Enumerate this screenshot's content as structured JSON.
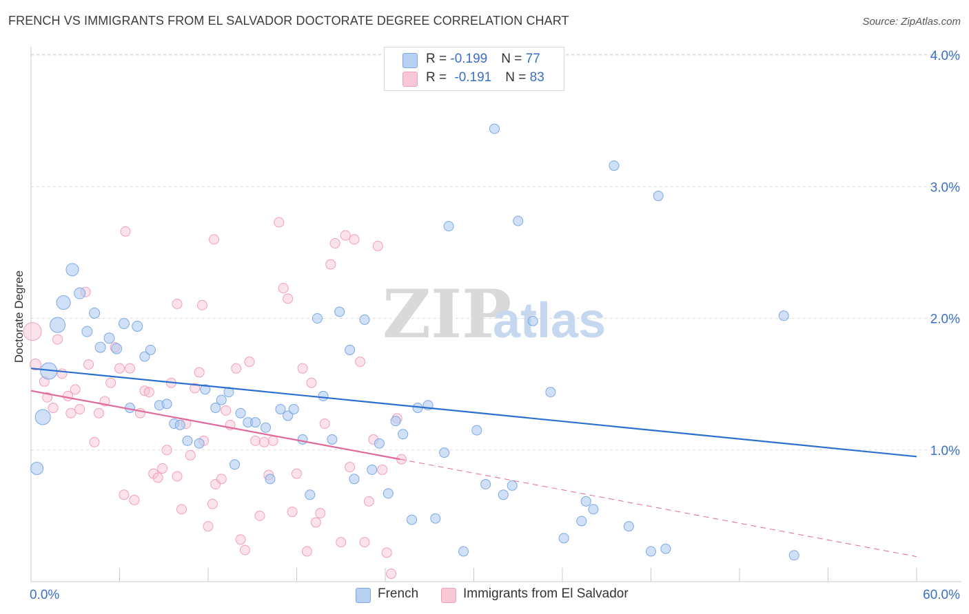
{
  "title": "FRENCH VS IMMIGRANTS FROM EL SALVADOR DOCTORATE DEGREE CORRELATION CHART",
  "source": "Source: ZipAtlas.com",
  "watermark": {
    "zip": "ZIP",
    "atlas": "atlas"
  },
  "legend": {
    "rows": [
      {
        "r_label": "R = ",
        "r_value": "-0.199",
        "n_label": "N = ",
        "n_value": "77"
      },
      {
        "r_label": "R = ",
        "r_value": "-0.191",
        "n_label": "N = ",
        "n_value": "83"
      }
    ]
  },
  "chart_data": {
    "type": "scatter",
    "title": "FRENCH VS IMMIGRANTS FROM EL SALVADOR DOCTORATE DEGREE CORRELATION CHART",
    "xlabel": "",
    "ylabel": "Doctorate Degree",
    "xlim": [
      0,
      60
    ],
    "ylim": [
      0,
      4.0
    ],
    "x_tick_labels": [
      "0.0%",
      "60.0%"
    ],
    "y_tick_labels": [
      "1.0%",
      "2.0%",
      "3.0%",
      "4.0%"
    ],
    "y_tick_values": [
      1.0,
      2.0,
      3.0,
      4.0
    ],
    "grid": true,
    "legend_position": "top-center",
    "colors": {
      "french": "#7aa8e6",
      "salvador": "#f0a0ba",
      "french_line": "#2a6fd0",
      "salvador_line": "#e0689a"
    },
    "series": [
      {
        "name": "French",
        "points": [
          [
            0.4,
            0.86,
            16
          ],
          [
            0.8,
            1.25,
            20
          ],
          [
            1.2,
            1.6,
            22
          ],
          [
            1.8,
            1.95,
            20
          ],
          [
            2.2,
            2.12,
            18
          ],
          [
            2.8,
            2.37,
            16
          ],
          [
            3.3,
            2.19,
            14
          ],
          [
            3.8,
            1.9,
            13
          ],
          [
            4.3,
            2.04,
            13
          ],
          [
            4.7,
            1.78,
            13
          ],
          [
            5.3,
            1.85,
            13
          ],
          [
            5.8,
            1.77,
            13
          ],
          [
            6.3,
            1.96,
            13
          ],
          [
            6.7,
            1.32,
            12
          ],
          [
            7.2,
            1.94,
            13
          ],
          [
            7.7,
            1.71,
            12
          ],
          [
            8.1,
            1.76,
            12
          ],
          [
            8.7,
            1.34,
            12
          ],
          [
            9.2,
            1.35,
            12
          ],
          [
            9.7,
            1.2,
            12
          ],
          [
            10.1,
            1.19,
            12
          ],
          [
            10.6,
            1.07,
            12
          ],
          [
            11.4,
            1.05,
            12
          ],
          [
            11.8,
            1.46,
            12
          ],
          [
            12.5,
            1.32,
            12
          ],
          [
            12.9,
            1.38,
            12
          ],
          [
            13.4,
            1.44,
            12
          ],
          [
            13.8,
            0.89,
            12
          ],
          [
            14.2,
            1.28,
            12
          ],
          [
            14.7,
            1.21,
            12
          ],
          [
            15.2,
            1.21,
            12
          ],
          [
            15.9,
            1.17,
            12
          ],
          [
            16.2,
            0.78,
            12
          ],
          [
            16.9,
            1.31,
            12
          ],
          [
            17.4,
            1.26,
            12
          ],
          [
            17.8,
            1.31,
            12
          ],
          [
            18.4,
            1.08,
            12
          ],
          [
            18.9,
            0.66,
            12
          ],
          [
            19.4,
            2.0,
            12
          ],
          [
            19.8,
            1.41,
            12
          ],
          [
            20.4,
            1.08,
            12
          ],
          [
            20.9,
            2.05,
            12
          ],
          [
            21.6,
            1.76,
            12
          ],
          [
            21.9,
            0.78,
            12
          ],
          [
            22.6,
            1.99,
            12
          ],
          [
            23.1,
            0.85,
            12
          ],
          [
            23.6,
            1.05,
            12
          ],
          [
            24.2,
            0.67,
            12
          ],
          [
            24.7,
            1.22,
            12
          ],
          [
            25.2,
            1.12,
            12
          ],
          [
            25.8,
            0.47,
            12
          ],
          [
            26.2,
            1.32,
            12
          ],
          [
            26.9,
            1.34,
            12
          ],
          [
            27.4,
            0.48,
            12
          ],
          [
            28.0,
            0.98,
            12
          ],
          [
            28.3,
            2.7,
            12
          ],
          [
            28.8,
            3.78,
            12
          ],
          [
            29.3,
            0.23,
            12
          ],
          [
            30.2,
            1.15,
            12
          ],
          [
            30.8,
            0.74,
            12
          ],
          [
            31.4,
            3.44,
            12
          ],
          [
            32.0,
            0.66,
            12
          ],
          [
            32.6,
            0.73,
            12
          ],
          [
            33.0,
            2.74,
            12
          ],
          [
            34.0,
            1.98,
            12
          ],
          [
            35.2,
            1.44,
            12
          ],
          [
            36.1,
            0.33,
            12
          ],
          [
            37.3,
            0.46,
            12
          ],
          [
            37.6,
            0.61,
            12
          ],
          [
            38.1,
            0.55,
            12
          ],
          [
            39.5,
            3.16,
            12
          ],
          [
            40.5,
            0.42,
            12
          ],
          [
            42.0,
            0.23,
            12
          ],
          [
            42.5,
            2.93,
            12
          ],
          [
            43.0,
            0.25,
            12
          ],
          [
            51.0,
            2.02,
            12
          ],
          [
            51.7,
            0.2,
            12
          ]
        ]
      },
      {
        "name": "Immigrants from El Salvador",
        "points": [
          [
            0.1,
            1.9,
            24
          ],
          [
            0.3,
            1.65,
            14
          ],
          [
            0.9,
            1.52,
            12
          ],
          [
            1.1,
            1.4,
            12
          ],
          [
            1.5,
            1.32,
            12
          ],
          [
            1.8,
            1.84,
            12
          ],
          [
            2.1,
            1.58,
            12
          ],
          [
            2.5,
            1.41,
            12
          ],
          [
            2.7,
            1.28,
            12
          ],
          [
            3.0,
            1.46,
            12
          ],
          [
            3.3,
            1.31,
            12
          ],
          [
            3.7,
            2.2,
            12
          ],
          [
            3.9,
            1.65,
            12
          ],
          [
            4.3,
            1.06,
            12
          ],
          [
            4.6,
            1.28,
            12
          ],
          [
            5.0,
            1.37,
            12
          ],
          [
            5.4,
            1.51,
            12
          ],
          [
            5.7,
            1.78,
            12
          ],
          [
            6.0,
            1.62,
            12
          ],
          [
            6.3,
            0.66,
            12
          ],
          [
            6.7,
            1.62,
            12
          ],
          [
            7.0,
            0.62,
            12
          ],
          [
            7.4,
            1.28,
            12
          ],
          [
            7.7,
            1.45,
            12
          ],
          [
            8.0,
            1.44,
            12
          ],
          [
            8.3,
            0.82,
            12
          ],
          [
            8.6,
            0.79,
            12
          ],
          [
            8.9,
            0.86,
            12
          ],
          [
            9.2,
            1.0,
            12
          ],
          [
            9.5,
            1.51,
            12
          ],
          [
            9.9,
            0.8,
            12
          ],
          [
            10.2,
            0.55,
            12
          ],
          [
            10.5,
            1.2,
            12
          ],
          [
            10.8,
            0.96,
            12
          ],
          [
            11.1,
            1.47,
            12
          ],
          [
            11.4,
            1.59,
            12
          ],
          [
            11.7,
            1.07,
            12
          ],
          [
            12.0,
            0.42,
            12
          ],
          [
            12.3,
            0.59,
            12
          ],
          [
            12.5,
            0.74,
            12
          ],
          [
            12.9,
            0.78,
            12
          ],
          [
            13.2,
            1.3,
            12
          ],
          [
            13.5,
            1.19,
            12
          ],
          [
            13.9,
            1.62,
            12
          ],
          [
            14.2,
            0.32,
            12
          ],
          [
            14.5,
            0.24,
            12
          ],
          [
            14.8,
            1.67,
            12
          ],
          [
            15.2,
            1.07,
            12
          ],
          [
            15.5,
            0.5,
            12
          ],
          [
            15.8,
            1.06,
            12
          ],
          [
            16.1,
            0.81,
            12
          ],
          [
            16.4,
            1.07,
            12
          ],
          [
            16.8,
            2.73,
            12
          ],
          [
            17.1,
            2.23,
            12
          ],
          [
            17.4,
            2.15,
            12
          ],
          [
            17.7,
            0.53,
            12
          ],
          [
            18.0,
            0.82,
            12
          ],
          [
            18.4,
            1.62,
            12
          ],
          [
            18.7,
            0.23,
            12
          ],
          [
            19.0,
            1.51,
            12
          ],
          [
            19.3,
            0.45,
            12
          ],
          [
            19.6,
            0.52,
            12
          ],
          [
            19.9,
            1.2,
            12
          ],
          [
            20.3,
            2.41,
            12
          ],
          [
            20.6,
            2.57,
            12
          ],
          [
            21.0,
            0.3,
            12
          ],
          [
            21.3,
            2.63,
            12
          ],
          [
            21.6,
            0.87,
            12
          ],
          [
            21.9,
            2.6,
            12
          ],
          [
            22.3,
            1.67,
            12
          ],
          [
            22.6,
            0.3,
            12
          ],
          [
            22.9,
            0.61,
            12
          ],
          [
            23.2,
            1.08,
            12
          ],
          [
            23.5,
            2.55,
            12
          ],
          [
            23.8,
            0.85,
            12
          ],
          [
            24.1,
            0.22,
            12
          ],
          [
            24.4,
            0.06,
            12
          ],
          [
            24.8,
            1.24,
            12
          ],
          [
            25.1,
            0.93,
            12
          ],
          [
            9.9,
            2.11,
            12
          ],
          [
            6.4,
            2.66,
            12
          ],
          [
            11.6,
            2.1,
            12
          ],
          [
            12.4,
            2.6,
            12
          ]
        ]
      }
    ],
    "trendlines": [
      {
        "series": "French",
        "x": [
          0,
          60
        ],
        "y": [
          1.62,
          0.95
        ],
        "style": "solid"
      },
      {
        "series": "Immigrants from El Salvador",
        "x": [
          0,
          25
        ],
        "y": [
          1.45,
          0.93
        ],
        "style": "solid"
      },
      {
        "series": "Immigrants from El Salvador",
        "x": [
          25,
          60
        ],
        "y": [
          0.93,
          0.19
        ],
        "style": "dashed"
      }
    ]
  },
  "bottom_legend": {
    "french": "French",
    "salvador": "Immigrants from El Salvador"
  }
}
